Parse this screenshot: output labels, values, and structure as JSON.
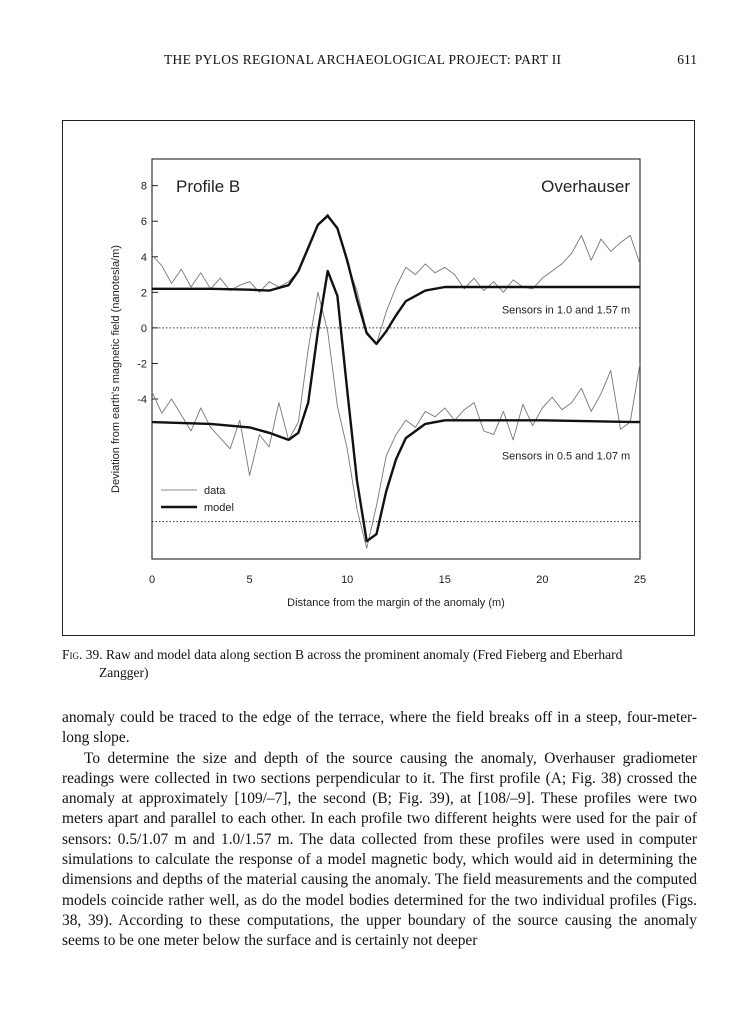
{
  "running_head": {
    "title": "THE PYLOS REGIONAL ARCHAEOLOGICAL PROJECT: PART II",
    "page_number": "611"
  },
  "figure": {
    "panel_title": "Profile B",
    "instrument": "Overhauser",
    "legend": {
      "data_label": "data",
      "model_label": "model"
    }
  },
  "chart_data": {
    "type": "line",
    "xlabel": "Distance from the margin of the anomaly (m)",
    "ylabel": "Deviation from earth's magnetic field (nanotesla/m)",
    "xlim": [
      0,
      25
    ],
    "ylim": [
      -13,
      9.5
    ],
    "x_ticks": [
      0,
      5,
      10,
      15,
      20,
      25
    ],
    "y_ticks": [
      8,
      6,
      4,
      2,
      0,
      -2,
      -4
    ],
    "grid": false,
    "legend_position": "bottom-left",
    "annotations": [
      {
        "text": "Sensors in 1.0 and 1.57 m",
        "x": 24.5,
        "y": 0.8
      },
      {
        "text": "Sensors in 0.5 and 1.07 m",
        "x": 24.5,
        "y": -7.4
      }
    ],
    "reference_lines": [
      {
        "name": "zero-line-upper",
        "y": 0
      },
      {
        "name": "zero-line-lower",
        "y": -10.9
      }
    ],
    "series": [
      {
        "role": "data",
        "profile": "upper",
        "x": [
          0,
          0.5,
          1,
          1.5,
          2,
          2.5,
          3,
          3.5,
          4,
          4.5,
          5,
          5.5,
          6,
          6.5,
          7,
          7.5,
          8,
          8.5,
          9,
          9.5,
          10,
          10.5,
          11,
          11.5,
          12,
          12.5,
          13,
          13.5,
          14,
          14.5,
          15,
          15.5,
          16,
          16.5,
          17,
          17.5,
          18,
          18.5,
          19,
          19.5,
          20,
          20.5,
          21,
          21.5,
          22,
          22.5,
          23,
          23.5,
          24,
          24.5,
          25
        ],
        "y": [
          4.1,
          3.5,
          2.5,
          3.3,
          2.3,
          3.1,
          2.2,
          2.8,
          2.1,
          2.4,
          2.6,
          2.0,
          2.6,
          2.3,
          2.6,
          3.2,
          4.6,
          5.8,
          6.4,
          5.6,
          3.6,
          2.1,
          -0.2,
          -0.9,
          0.9,
          2.3,
          3.4,
          3.0,
          3.6,
          3.1,
          3.4,
          3.0,
          2.2,
          2.8,
          2.1,
          2.6,
          2.0,
          2.7,
          2.3,
          2.2,
          2.8,
          3.2,
          3.6,
          4.2,
          5.2,
          3.8,
          5.0,
          4.3,
          4.8,
          5.2,
          3.6
        ]
      },
      {
        "role": "model",
        "profile": "upper",
        "x": [
          0,
          3,
          5,
          6,
          7,
          7.5,
          8,
          8.5,
          9,
          9.5,
          10,
          10.5,
          11,
          11.5,
          12,
          12.5,
          13,
          14,
          15,
          17,
          20,
          25
        ],
        "y": [
          2.2,
          2.2,
          2.15,
          2.1,
          2.4,
          3.2,
          4.5,
          5.8,
          6.3,
          5.6,
          3.8,
          1.6,
          -0.3,
          -0.9,
          -0.2,
          0.7,
          1.5,
          2.1,
          2.3,
          2.3,
          2.3,
          2.3
        ]
      },
      {
        "role": "data",
        "profile": "lower",
        "x": [
          0,
          0.5,
          1,
          1.5,
          2,
          2.5,
          3,
          3.5,
          4,
          4.5,
          5,
          5.5,
          6,
          6.5,
          7,
          7.5,
          8,
          8.5,
          9,
          9.5,
          10,
          10.5,
          11,
          11.5,
          12,
          12.5,
          13,
          13.5,
          14,
          14.5,
          15,
          15.5,
          16,
          16.5,
          17,
          17.5,
          18,
          18.5,
          19,
          19.5,
          20,
          20.5,
          21,
          21.5,
          22,
          22.5,
          23,
          23.5,
          24,
          24.5,
          25
        ],
        "y": [
          -3.6,
          -4.8,
          -4.0,
          -4.9,
          -5.8,
          -4.5,
          -5.6,
          -6.2,
          -6.8,
          -5.2,
          -8.3,
          -6.0,
          -6.7,
          -4.2,
          -6.3,
          -5.3,
          -1.2,
          2.0,
          -0.2,
          -4.4,
          -6.8,
          -10.2,
          -12.4,
          -10.0,
          -7.2,
          -6.0,
          -5.2,
          -5.6,
          -4.7,
          -5.0,
          -4.5,
          -5.2,
          -4.6,
          -4.2,
          -5.8,
          -6.0,
          -4.7,
          -6.3,
          -4.3,
          -5.5,
          -4.5,
          -3.9,
          -4.6,
          -4.2,
          -3.4,
          -4.7,
          -3.7,
          -2.4,
          -5.7,
          -5.3,
          -2.0
        ]
      },
      {
        "role": "model",
        "profile": "lower",
        "x": [
          0,
          3,
          5,
          6,
          7,
          7.5,
          8,
          8.5,
          9,
          9.5,
          10,
          10.5,
          11,
          11.5,
          12,
          12.5,
          13,
          14,
          15,
          17,
          20,
          25
        ],
        "y": [
          -5.3,
          -5.4,
          -5.6,
          -5.9,
          -6.3,
          -5.9,
          -4.2,
          -0.2,
          3.2,
          1.8,
          -3.5,
          -8.6,
          -12.0,
          -11.6,
          -9.2,
          -7.4,
          -6.2,
          -5.4,
          -5.2,
          -5.2,
          -5.2,
          -5.3
        ]
      }
    ]
  },
  "caption": {
    "label": "Fig. 39.",
    "text": " Raw and model data along section B across the prominent anomaly (Fred Fieberg and Eberhard",
    "continuation": "Zangger)"
  },
  "body": {
    "paragraph1": "anomaly could be traced to the edge of the terrace, where the field breaks off in a steep, four-meter-long slope.",
    "paragraph2": "To determine the size and depth of the source causing the anomaly, Overhauser gradiometer readings were collected in two sections perpendicular to it. The first profile (A; Fig. 38) crossed the anomaly at approximately [109/–7], the second (B; Fig. 39), at [108/–9]. These profiles were two meters apart and parallel to each other. In each profile two different heights were used for the pair of sensors: 0.5/1.07 m and 1.0/1.57 m. The data collected from these profiles were used in computer simulations to calculate the response of a model magnetic body, which would aid in determining the dimensions and depths of the material causing the anomaly. The field measurements and the computed models coincide rather well, as do the model bodies determined for the two individual profiles (Figs. 38, 39). According to these computations, the upper boundary of the source causing the anomaly seems to be one meter below the surface and is certainly not deeper"
  }
}
